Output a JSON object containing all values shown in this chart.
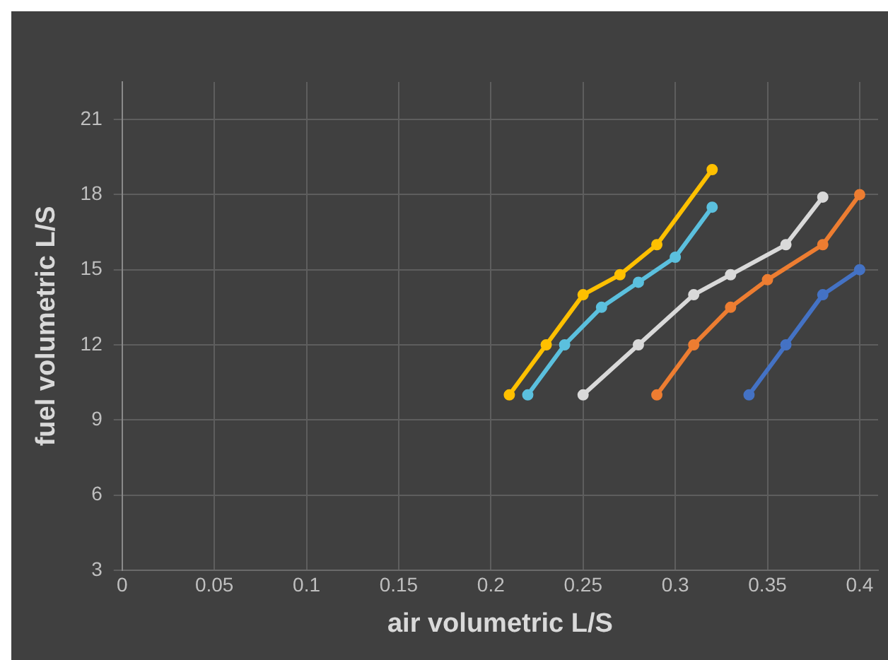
{
  "chart_data": {
    "type": "line",
    "xlabel": "air volumetric L/S",
    "ylabel": "fuel volumetric L/S",
    "xlim": [
      0,
      0.41
    ],
    "xticks": [
      0,
      0.05,
      0.1,
      0.15,
      0.2,
      0.25,
      0.3,
      0.35,
      0.4
    ],
    "ylim": [
      3,
      22.5
    ],
    "yticks": [
      3,
      6,
      9,
      12,
      15,
      18,
      21
    ],
    "grid": true,
    "legend": false,
    "marker": "circle",
    "line_style": "solid",
    "series": [
      {
        "color": "#ffc000",
        "x": [
          0.21,
          0.23,
          0.25,
          0.27,
          0.29,
          0.32
        ],
        "values": [
          10,
          12,
          14,
          14.8,
          16,
          19
        ]
      },
      {
        "color": "#5bc0de",
        "x": [
          0.22,
          0.24,
          0.26,
          0.28,
          0.3,
          0.32
        ],
        "values": [
          10,
          12,
          13.5,
          14.5,
          15.5,
          17.5
        ]
      },
      {
        "color": "#d9d9d9",
        "x": [
          0.25,
          0.28,
          0.31,
          0.33,
          0.36,
          0.38
        ],
        "values": [
          10,
          12,
          14,
          14.8,
          16,
          17.9
        ]
      },
      {
        "color": "#ed7d31",
        "x": [
          0.29,
          0.31,
          0.33,
          0.35,
          0.38,
          0.4
        ],
        "values": [
          10,
          12,
          13.5,
          14.6,
          16,
          18
        ]
      },
      {
        "color": "#4472c4",
        "x": [
          0.34,
          0.36,
          0.38,
          0.4
        ],
        "values": [
          10,
          12,
          14,
          15
        ]
      }
    ]
  }
}
